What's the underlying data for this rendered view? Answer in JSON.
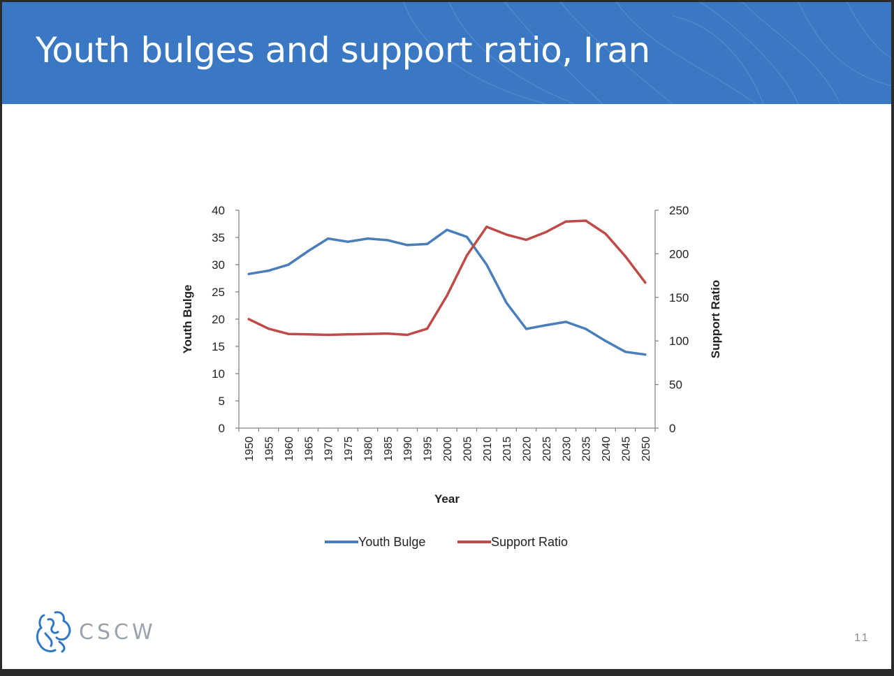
{
  "slide": {
    "title": "Youth bulges and support ratio, Iran",
    "page_number": "11",
    "logo_text": "CSCW",
    "accent_color": "#3a78c3"
  },
  "chart_data": {
    "type": "line",
    "title": "",
    "xlabel": "Year",
    "ylabel": "Youth Bulge",
    "y2label": "Support Ratio",
    "categories": [
      "1950",
      "1955",
      "1960",
      "1965",
      "1970",
      "1975",
      "1980",
      "1985",
      "1990",
      "1995",
      "2000",
      "2005",
      "2010",
      "2015",
      "2020",
      "2025",
      "2030",
      "2035",
      "2040",
      "2045",
      "2050"
    ],
    "ylim": [
      0,
      40
    ],
    "y_ticks": [
      "0",
      "5",
      "10",
      "15",
      "20",
      "25",
      "30",
      "35",
      "40"
    ],
    "y2lim": [
      0,
      250
    ],
    "y2_ticks": [
      "0",
      "50",
      "100",
      "150",
      "200",
      "250"
    ],
    "grid": false,
    "legend_position": "bottom",
    "series": [
      {
        "name": "Youth Bulge",
        "axis": "left",
        "color": "#4a7ebb",
        "values": [
          28.3,
          28.9,
          30.0,
          32.5,
          34.8,
          34.2,
          34.8,
          34.5,
          33.6,
          33.8,
          36.4,
          35.1,
          30.0,
          23.0,
          18.2,
          18.9,
          19.5,
          18.2,
          16.0,
          14.0,
          13.5
        ]
      },
      {
        "name": "Support Ratio",
        "axis": "right",
        "color": "#be4b48",
        "values": [
          125,
          114,
          108,
          107.5,
          107,
          107.5,
          108,
          108.5,
          107,
          114,
          152,
          198,
          231,
          222,
          216,
          225,
          237,
          238,
          223,
          197,
          167
        ]
      }
    ]
  }
}
